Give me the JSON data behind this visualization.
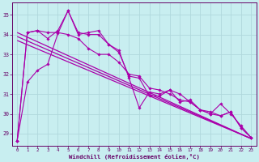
{
  "xlabel": "Windchill (Refroidissement éolien,°C)",
  "bg_color": "#c8eef0",
  "grid_color": "#b0d8dc",
  "line_color": "#aa00aa",
  "spine_color": "#660066",
  "xlim": [
    -0.5,
    23.5
  ],
  "ylim": [
    28.4,
    35.6
  ],
  "yticks": [
    29,
    30,
    31,
    32,
    33,
    34,
    35
  ],
  "xticks": [
    0,
    1,
    2,
    3,
    4,
    5,
    6,
    7,
    8,
    9,
    10,
    11,
    12,
    13,
    14,
    15,
    16,
    17,
    18,
    19,
    20,
    21,
    22,
    23
  ],
  "trend_lines": [
    [
      [
        0,
        23
      ],
      [
        34.1,
        28.75
      ]
    ],
    [
      [
        0,
        23
      ],
      [
        33.9,
        28.75
      ]
    ],
    [
      [
        0,
        23
      ],
      [
        33.7,
        28.75
      ]
    ]
  ],
  "series": [
    [
      28.65,
      31.6,
      32.2,
      32.5,
      34.05,
      35.2,
      34.1,
      34.0,
      34.0,
      33.5,
      33.1,
      31.9,
      31.8,
      30.9,
      30.9,
      31.2,
      31.0,
      30.6,
      30.2,
      30.1,
      29.9,
      30.1,
      29.3,
      28.8
    ],
    [
      28.65,
      34.1,
      34.2,
      34.1,
      34.1,
      34.0,
      33.8,
      33.3,
      33.0,
      33.0,
      32.6,
      32.0,
      31.9,
      31.3,
      31.2,
      31.0,
      30.7,
      30.6,
      30.2,
      30.0,
      29.9,
      30.1,
      29.3,
      28.8
    ],
    [
      28.65,
      34.1,
      34.2,
      33.8,
      34.2,
      35.2,
      34.0,
      34.1,
      34.2,
      33.5,
      33.2,
      31.8,
      30.3,
      31.1,
      31.0,
      31.2,
      30.6,
      30.7,
      30.2,
      30.0,
      30.5,
      30.0,
      29.4,
      28.8
    ]
  ]
}
